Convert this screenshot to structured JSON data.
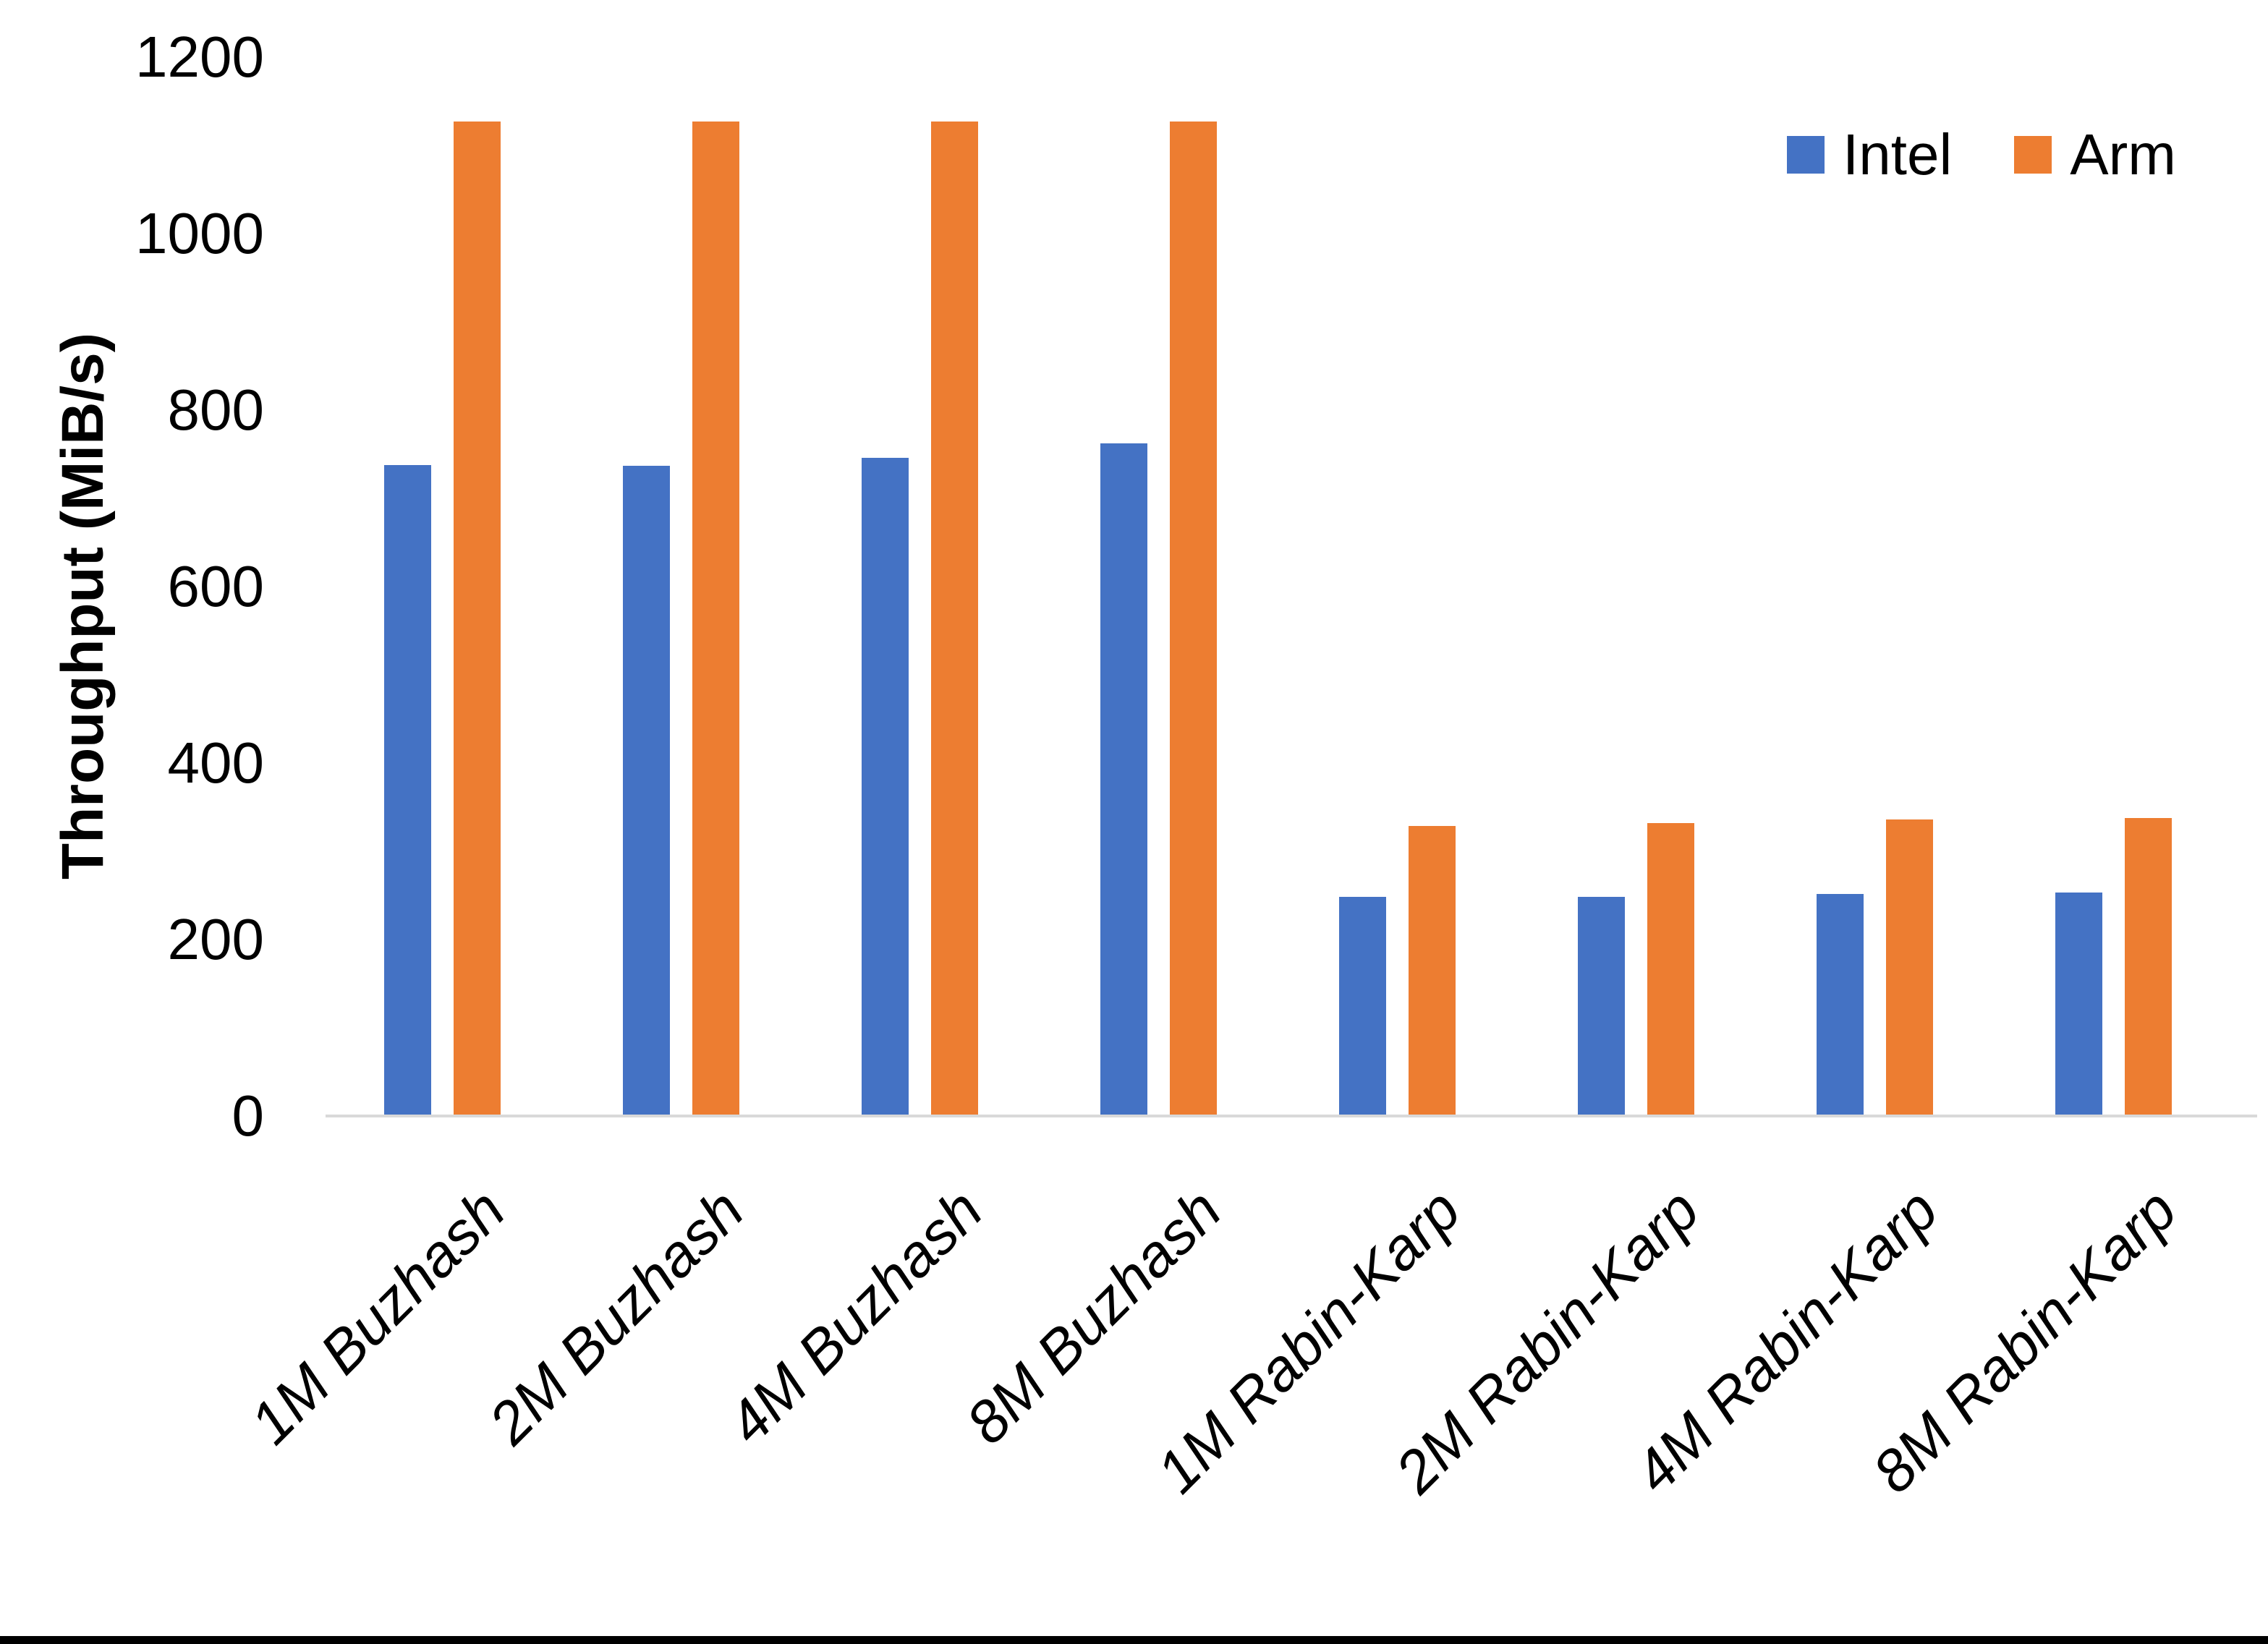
{
  "chart_data": {
    "type": "bar",
    "title": "",
    "ylabel": "Throughput (MiB/s)",
    "xlabel": "",
    "ylim": [
      0,
      1200
    ],
    "yticks": [
      0,
      200,
      400,
      600,
      800,
      1000,
      1200
    ],
    "grid": false,
    "legend_position": "top-right",
    "categories": [
      "1M Buzhash",
      "2M Buzhash",
      "4M Buzhash",
      "8M Buzhash",
      "1M Rabin-Karp",
      "2M Rabin-Karp",
      "4M Rabin-Karp",
      "8M Rabin-Karp"
    ],
    "series": [
      {
        "name": "Intel",
        "color": "#4472C4",
        "values": [
          738,
          737,
          746,
          762,
          248,
          248,
          252,
          253
        ]
      },
      {
        "name": "Arm",
        "color": "#ED7D31",
        "values": [
          1127,
          1127,
          1127,
          1127,
          329,
          332,
          336,
          338
        ]
      }
    ]
  },
  "axis": {
    "baseline_color": "#D9D9D9",
    "text_color": "#000000"
  },
  "page": {
    "background": "#FFFFFF",
    "bottom_bar_color": "#000000"
  }
}
